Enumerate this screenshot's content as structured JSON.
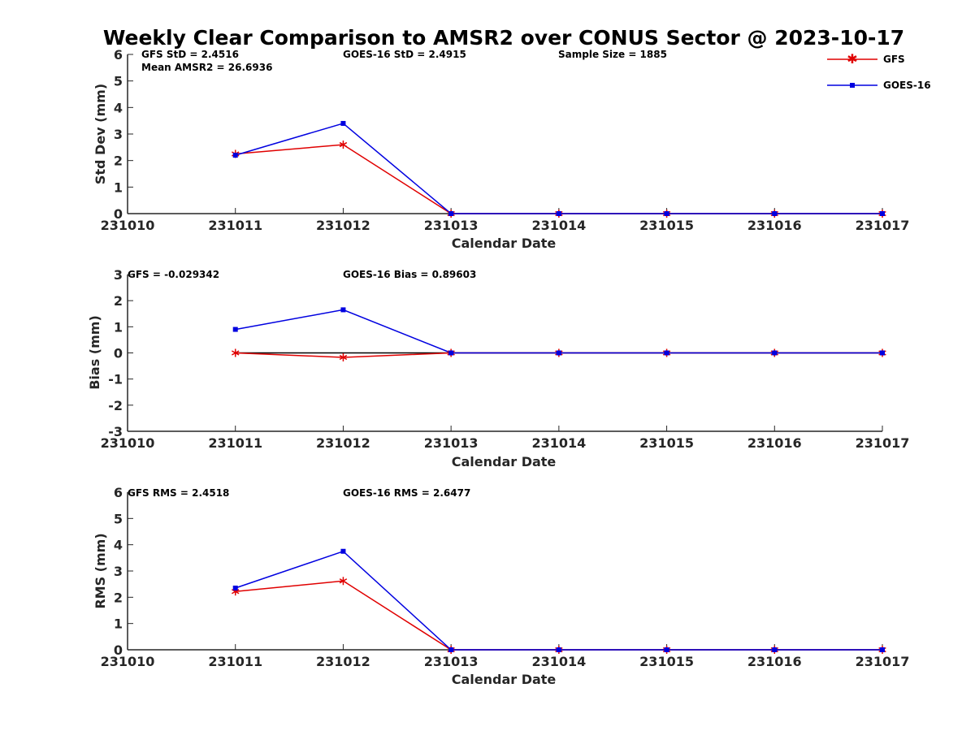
{
  "figure_title": "Weekly Clear Comparison to AMSR2 over CONUS Sector @ 2023-10-17",
  "legend": [
    {
      "label": "GFS",
      "color": "#e00000",
      "marker": "asterisk"
    },
    {
      "label": "GOES-16",
      "color": "#0000e0",
      "marker": "square"
    }
  ],
  "chart_data": [
    {
      "type": "line",
      "title": "",
      "xlabel": "Calendar Date",
      "ylabel": "Std Dev (mm)",
      "x_ticks": [
        "231010",
        "231011",
        "231012",
        "231013",
        "231014",
        "231015",
        "231016",
        "231017"
      ],
      "ylim": [
        0,
        6
      ],
      "y_ticks": [
        "0",
        "1",
        "2",
        "3",
        "4",
        "5",
        "6"
      ],
      "zero_line": false,
      "series": [
        {
          "name": "GFS",
          "x": [
            "231011",
            "231012",
            "231013",
            "231014",
            "231015",
            "231016",
            "231017"
          ],
          "values": [
            2.25,
            2.6,
            0,
            0,
            0,
            0,
            0
          ]
        },
        {
          "name": "GOES-16",
          "x": [
            "231011",
            "231012",
            "231013",
            "231014",
            "231015",
            "231016",
            "231017"
          ],
          "values": [
            2.2,
            3.4,
            0,
            0,
            0,
            0,
            0
          ]
        }
      ],
      "annotations": [
        "GFS StD = 2.4516",
        "Mean AMSR2 = 26.6936",
        "GOES-16 StD = 2.4915",
        "Sample Size = 1885"
      ]
    },
    {
      "type": "line",
      "title": "",
      "xlabel": "Calendar Date",
      "ylabel": "Bias (mm)",
      "x_ticks": [
        "231010",
        "231011",
        "231012",
        "231013",
        "231014",
        "231015",
        "231016",
        "231017"
      ],
      "ylim": [
        -3,
        3
      ],
      "y_ticks": [
        "-3",
        "-2",
        "-1",
        "0",
        "1",
        "2",
        "3"
      ],
      "zero_line": true,
      "series": [
        {
          "name": "GFS",
          "x": [
            "231011",
            "231012",
            "231013",
            "231014",
            "231015",
            "231016",
            "231017"
          ],
          "values": [
            0,
            -0.17,
            0,
            0,
            0,
            0,
            0
          ]
        },
        {
          "name": "GOES-16",
          "x": [
            "231011",
            "231012",
            "231013",
            "231014",
            "231015",
            "231016",
            "231017"
          ],
          "values": [
            0.9,
            1.65,
            0,
            0,
            0,
            0,
            0
          ]
        }
      ],
      "annotations": [
        "GFS = -0.029342",
        "GOES-16 Bias  = 0.89603"
      ]
    },
    {
      "type": "line",
      "title": "",
      "xlabel": "Calendar Date",
      "ylabel": "RMS (mm)",
      "x_ticks": [
        "231010",
        "231011",
        "231012",
        "231013",
        "231014",
        "231015",
        "231016",
        "231017"
      ],
      "ylim": [
        0,
        6
      ],
      "y_ticks": [
        "0",
        "1",
        "2",
        "3",
        "4",
        "5",
        "6"
      ],
      "zero_line": false,
      "series": [
        {
          "name": "GFS",
          "x": [
            "231011",
            "231012",
            "231013",
            "231014",
            "231015",
            "231016",
            "231017"
          ],
          "values": [
            2.22,
            2.62,
            0,
            0,
            0,
            0,
            0
          ]
        },
        {
          "name": "GOES-16",
          "x": [
            "231011",
            "231012",
            "231013",
            "231014",
            "231015",
            "231016",
            "231017"
          ],
          "values": [
            2.35,
            3.75,
            0,
            0,
            0,
            0,
            0
          ]
        }
      ],
      "annotations": [
        "GFS RMS = 2.4518",
        "GOES-16 RMS = 2.6477"
      ]
    }
  ]
}
